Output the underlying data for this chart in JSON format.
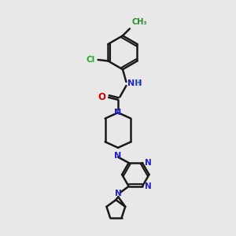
{
  "background_color": "#e8e8e8",
  "bond_color": "#1a1a1a",
  "N_color": "#2222cc",
  "O_color": "#cc0000",
  "Cl_color": "#22aa22",
  "CH3_color": "#228B22",
  "figsize": [
    3.0,
    3.0
  ],
  "dpi": 100,
  "xlim": [
    0,
    10
  ],
  "ylim": [
    0,
    10
  ]
}
